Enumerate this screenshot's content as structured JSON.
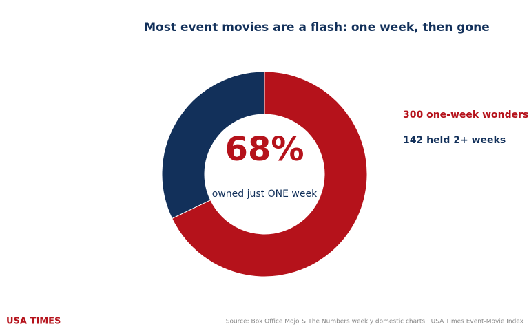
{
  "chart_data": {
    "type": "donut",
    "title": "Most event movies are a flash: one week, then gone",
    "categories": [
      "300 one-week wonders",
      "142 held 2+ weeks"
    ],
    "values": [
      300,
      142
    ],
    "colors": [
      "#b5121b",
      "#12305a"
    ],
    "center_label": "68%",
    "center_caption": "owned just ONE week",
    "brand": "USA TIMES",
    "source": "Source: Box Office Mojo & The Numbers weekly domestic charts · USA Times Event-Movie Index"
  }
}
